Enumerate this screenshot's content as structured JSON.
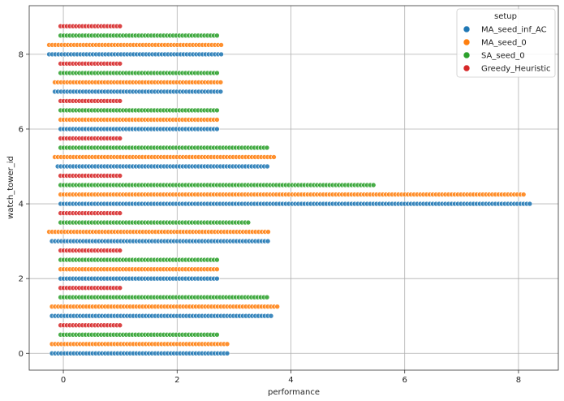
{
  "chart_data": {
    "type": "scatter",
    "xlabel": "performance",
    "ylabel": "watch_tower_id",
    "xlim": [
      -0.6,
      8.7
    ],
    "ylim": [
      -0.45,
      9.3
    ],
    "xticks": [
      0,
      2,
      4,
      6,
      8
    ],
    "yticks": [
      0,
      2,
      4,
      6,
      8
    ],
    "grid": true,
    "legend": {
      "title": "setup",
      "placement": "top-right"
    },
    "series": [
      {
        "name": "MA_seed_inf_AC",
        "color": "#1f77b4",
        "offset": 0,
        "rows": [
          {
            "tower": 0,
            "xmin": -0.2,
            "xmax": 2.9
          },
          {
            "tower": 1,
            "xmin": -0.2,
            "xmax": 3.7
          },
          {
            "tower": 2,
            "xmin": -0.05,
            "xmax": 2.7
          },
          {
            "tower": 3,
            "xmin": -0.2,
            "xmax": 3.6
          },
          {
            "tower": 4,
            "xmin": -0.05,
            "xmax": 8.2
          },
          {
            "tower": 5,
            "xmin": -0.1,
            "xmax": 3.6
          },
          {
            "tower": 6,
            "xmin": -0.05,
            "xmax": 2.7
          },
          {
            "tower": 7,
            "xmin": -0.15,
            "xmax": 2.8
          },
          {
            "tower": 8,
            "xmin": -0.25,
            "xmax": 2.8
          }
        ]
      },
      {
        "name": "MA_seed_0",
        "color": "#ff7f0e",
        "offset": 0.25,
        "rows": [
          {
            "tower": 0,
            "xmin": -0.2,
            "xmax": 2.9
          },
          {
            "tower": 1,
            "xmin": -0.2,
            "xmax": 3.8
          },
          {
            "tower": 2,
            "xmin": -0.05,
            "xmax": 2.7
          },
          {
            "tower": 3,
            "xmin": -0.25,
            "xmax": 3.6
          },
          {
            "tower": 4,
            "xmin": -0.05,
            "xmax": 8.1
          },
          {
            "tower": 5,
            "xmin": -0.15,
            "xmax": 3.7
          },
          {
            "tower": 6,
            "xmin": -0.05,
            "xmax": 2.7
          },
          {
            "tower": 7,
            "xmin": -0.15,
            "xmax": 2.8
          },
          {
            "tower": 8,
            "xmin": -0.25,
            "xmax": 2.8
          }
        ]
      },
      {
        "name": "SA_seed_0",
        "color": "#2ca02c",
        "offset": 0.5,
        "rows": [
          {
            "tower": 0,
            "xmin": -0.05,
            "xmax": 2.7
          },
          {
            "tower": 1,
            "xmin": -0.05,
            "xmax": 3.6
          },
          {
            "tower": 2,
            "xmin": -0.05,
            "xmax": 2.7
          },
          {
            "tower": 3,
            "xmin": -0.05,
            "xmax": 3.3
          },
          {
            "tower": 4,
            "xmin": -0.05,
            "xmax": 5.5
          },
          {
            "tower": 5,
            "xmin": -0.05,
            "xmax": 3.6
          },
          {
            "tower": 6,
            "xmin": -0.05,
            "xmax": 2.7
          },
          {
            "tower": 7,
            "xmin": -0.05,
            "xmax": 2.7
          },
          {
            "tower": 8,
            "xmin": -0.05,
            "xmax": 2.7
          }
        ]
      },
      {
        "name": "Greedy_Heuristic",
        "color": "#d62728",
        "offset": 0.75,
        "rows": [
          {
            "tower": 0,
            "xmin": -0.05,
            "xmax": 1.0
          },
          {
            "tower": 1,
            "xmin": -0.05,
            "xmax": 1.0
          },
          {
            "tower": 2,
            "xmin": -0.05,
            "xmax": 1.0
          },
          {
            "tower": 3,
            "xmin": -0.05,
            "xmax": 1.0
          },
          {
            "tower": 4,
            "xmin": -0.05,
            "xmax": 1.0
          },
          {
            "tower": 5,
            "xmin": -0.05,
            "xmax": 1.0
          },
          {
            "tower": 6,
            "xmin": -0.05,
            "xmax": 1.0
          },
          {
            "tower": 7,
            "xmin": -0.05,
            "xmax": 1.0
          },
          {
            "tower": 8,
            "xmin": -0.05,
            "xmax": 1.0
          }
        ]
      }
    ]
  }
}
